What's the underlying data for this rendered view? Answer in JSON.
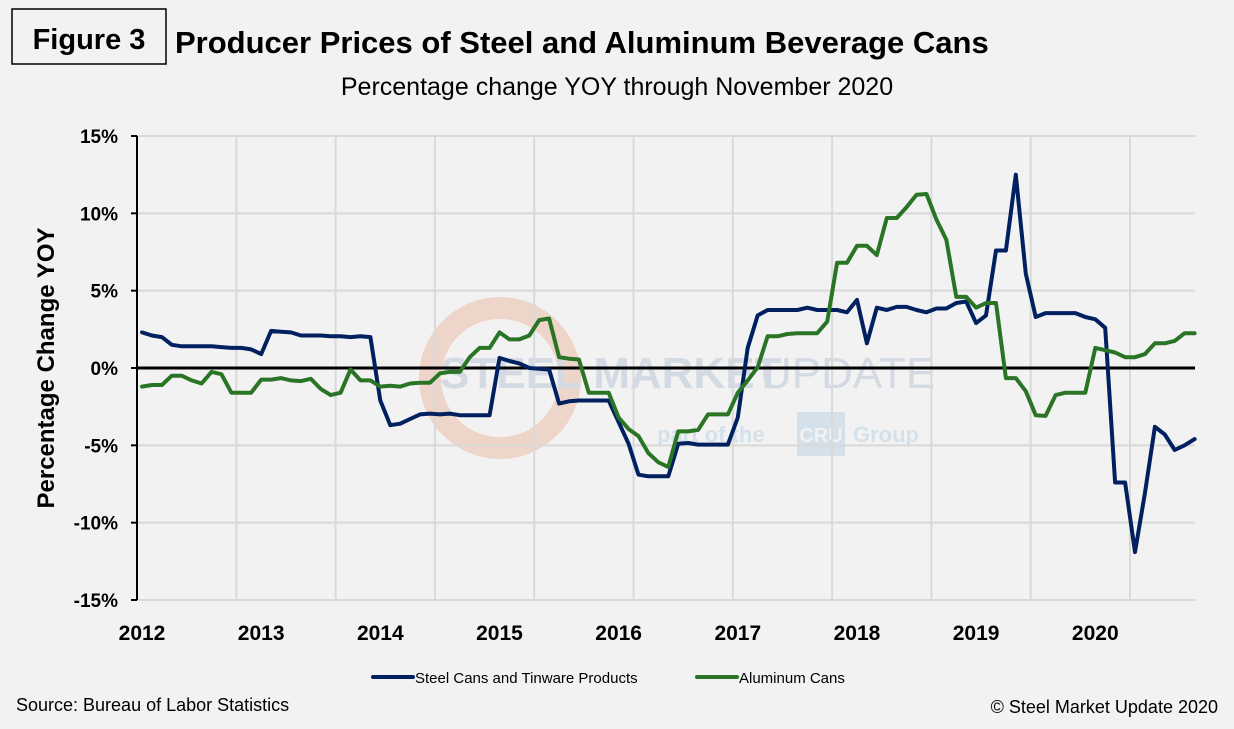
{
  "figure_label": "Figure 3",
  "source": "Source: Bureau of Labor Statistics",
  "copyright": "© Steel Market Update 2020",
  "watermark": {
    "main_bold": "STEEL MARKET",
    "main_light": "UPDATE",
    "sub_pre": "part of the",
    "sub_logo": "CRU",
    "sub_post": "Group"
  },
  "colors": {
    "steel": "#002060",
    "aluminum": "#2a7426",
    "background": "#f2f2f2"
  },
  "chart_data": {
    "type": "line",
    "title": "Producer Prices of Steel and Aluminum Beverage Cans",
    "subtitle": "Percentage change YOY through November 2020",
    "xlabel": "",
    "ylabel": "Percentage Change YOY",
    "x_start": "Jan 2012",
    "x_end": "Nov 2020",
    "x_frequency": "monthly",
    "x_tick_labels": [
      "2012",
      "2013",
      "2014",
      "2015",
      "2016",
      "2017",
      "2018",
      "2019",
      "2020"
    ],
    "y_ticks": [
      15,
      10,
      5,
      0,
      -5,
      -10,
      -15
    ],
    "y_tick_labels": [
      "15%",
      "10%",
      "5%",
      "0%",
      "-5%",
      "-10%",
      "-15%"
    ],
    "ylim": [
      -15,
      15
    ],
    "grid": true,
    "legend_position": "bottom",
    "series": [
      {
        "name": "Steel Cans and Tinware Products",
        "color": "#002060",
        "values": [
          2.3,
          2.1,
          2.0,
          1.5,
          1.4,
          1.4,
          1.4,
          1.4,
          1.35,
          1.3,
          1.3,
          1.2,
          0.9,
          2.4,
          2.35,
          2.3,
          2.1,
          2.1,
          2.1,
          2.05,
          2.05,
          2.0,
          2.05,
          2.0,
          -2.1,
          -3.7,
          -3.6,
          -3.3,
          -3.0,
          -2.95,
          -3.0,
          -2.95,
          -3.05,
          -3.05,
          -3.05,
          -3.05,
          0.65,
          0.45,
          0.3,
          0.0,
          -0.05,
          -0.1,
          -2.3,
          -2.15,
          -2.1,
          -2.1,
          -2.1,
          -2.1,
          -3.5,
          -4.9,
          -6.9,
          -7.0,
          -7.0,
          -7.0,
          -4.9,
          -4.85,
          -4.95,
          -4.95,
          -4.95,
          -4.95,
          -3.2,
          1.3,
          3.4,
          3.75,
          3.75,
          3.75,
          3.75,
          3.9,
          3.75,
          3.75,
          3.75,
          3.6,
          4.4,
          1.6,
          3.9,
          3.75,
          3.95,
          3.95,
          3.75,
          3.6,
          3.85,
          3.85,
          4.2,
          4.3,
          2.9,
          3.4,
          7.6,
          7.6,
          12.5,
          6.1,
          3.3,
          3.55,
          3.55,
          3.55,
          3.55,
          3.3,
          3.15,
          2.6,
          -7.4,
          -7.4,
          -11.9,
          -8.1,
          -3.8,
          -4.3,
          -5.3,
          -5.0,
          -4.6
        ]
      },
      {
        "name": "Aluminum Cans",
        "color": "#2a7426",
        "values": [
          -1.2,
          -1.1,
          -1.1,
          -0.5,
          -0.5,
          -0.8,
          -1.0,
          -0.25,
          -0.4,
          -1.6,
          -1.6,
          -1.6,
          -0.75,
          -0.75,
          -0.65,
          -0.8,
          -0.85,
          -0.7,
          -1.35,
          -1.75,
          -1.6,
          -0.1,
          -0.8,
          -0.8,
          -1.2,
          -1.15,
          -1.2,
          -1.0,
          -0.95,
          -0.95,
          -0.35,
          -0.25,
          -0.25,
          0.7,
          1.3,
          1.3,
          2.3,
          1.85,
          1.85,
          2.1,
          3.1,
          3.2,
          0.7,
          0.6,
          0.55,
          -1.6,
          -1.6,
          -1.6,
          -3.2,
          -3.95,
          -4.4,
          -5.5,
          -6.1,
          -6.4,
          -4.1,
          -4.1,
          -4.0,
          -3.0,
          -3.0,
          -3.0,
          -1.6,
          -0.8,
          0.05,
          2.05,
          2.05,
          2.2,
          2.25,
          2.25,
          2.25,
          3.0,
          6.8,
          6.8,
          7.9,
          7.9,
          7.3,
          9.7,
          9.7,
          10.4,
          11.2,
          11.25,
          9.6,
          8.3,
          4.6,
          4.6,
          3.9,
          4.2,
          4.2,
          -0.65,
          -0.65,
          -1.5,
          -3.05,
          -3.1,
          -1.75,
          -1.6,
          -1.6,
          -1.6,
          1.3,
          1.15,
          1.0,
          0.7,
          0.7,
          0.9,
          1.6,
          1.6,
          1.75,
          2.25,
          2.25
        ]
      }
    ]
  }
}
